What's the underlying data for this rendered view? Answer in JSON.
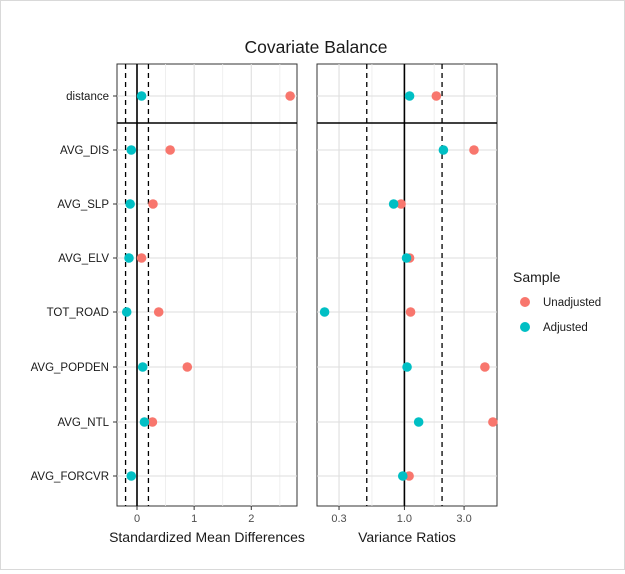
{
  "chart_data": {
    "type": "scatter",
    "title": "Covariate Balance",
    "covariates": [
      "distance",
      "AVG_DIS",
      "AVG_SLP",
      "AVG_ELV",
      "TOT_ROAD",
      "AVG_POPDEN",
      "AVG_NTL",
      "AVG_FORCVR"
    ],
    "legend": {
      "title": "Sample",
      "position": "right",
      "entries": [
        {
          "label": "Unadjusted",
          "color": "#f8766d"
        },
        {
          "label": "Adjusted",
          "color": "#00bfc4"
        }
      ]
    },
    "panels": [
      {
        "xlabel": "Standardized Mean Differences",
        "scale": "linear",
        "xlim": [
          -0.35,
          2.8
        ],
        "xticks": [
          {
            "value": 0,
            "label": "0"
          },
          {
            "value": 1,
            "label": "1"
          },
          {
            "value": 2,
            "label": "2"
          }
        ],
        "minor_gridlines": [
          0.5,
          1.5,
          2.5
        ],
        "solid_reference": 0,
        "threshold_lines": [
          -0.2,
          0.2
        ],
        "series": [
          {
            "name": "Unadjusted",
            "values": [
              2.68,
              0.58,
              0.28,
              0.08,
              0.38,
              0.88,
              0.27,
              null
            ]
          },
          {
            "name": "Adjusted",
            "values": [
              0.08,
              -0.1,
              -0.12,
              -0.14,
              -0.18,
              0.1,
              0.13,
              -0.1
            ]
          }
        ]
      },
      {
        "xlabel": "Variance Ratios",
        "scale": "log",
        "xlim": [
          0.2,
          5.5
        ],
        "xticks": [
          {
            "value": 0.3,
            "label": "0.3"
          },
          {
            "value": 1.0,
            "label": "1.0"
          },
          {
            "value": 3.0,
            "label": "3.0"
          }
        ],
        "minor_gridlines": [
          0.55,
          1.73
        ],
        "solid_reference": 1.0,
        "threshold_lines": [
          0.5,
          2.0
        ],
        "series": [
          {
            "name": "Unadjusted",
            "values": [
              1.8,
              3.6,
              0.94,
              1.1,
              1.12,
              4.4,
              5.1,
              1.09
            ]
          },
          {
            "name": "Adjusted",
            "values": [
              1.1,
              2.05,
              0.82,
              1.04,
              0.23,
              1.05,
              1.3,
              0.97
            ]
          }
        ]
      }
    ]
  }
}
